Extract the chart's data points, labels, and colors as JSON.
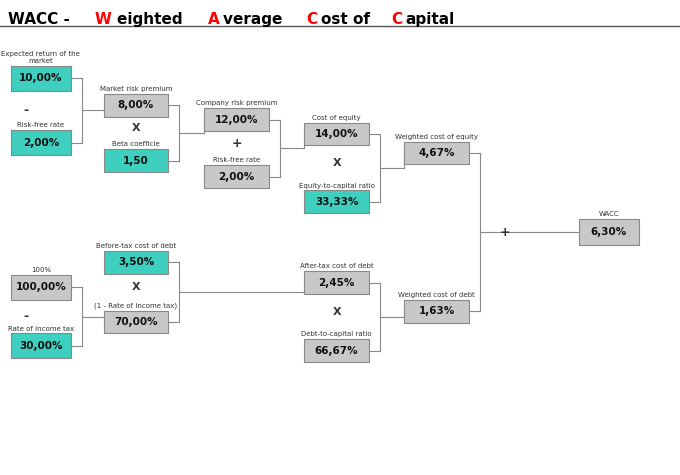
{
  "background_color": "#ffffff",
  "teal_color": "#3ecfbf",
  "gray_color": "#c8c8c8",
  "border_color": "#888888",
  "line_color": "#888888",
  "title_parts": [
    [
      "WACC - ",
      "#000000"
    ],
    [
      "W",
      "#ff0000"
    ],
    [
      "eighted ",
      "#000000"
    ],
    [
      "A",
      "#ff0000"
    ],
    [
      "verage ",
      "#000000"
    ],
    [
      "C",
      "#ff0000"
    ],
    [
      "ost of ",
      "#000000"
    ],
    [
      "C",
      "#ff0000"
    ],
    [
      "apital",
      "#000000"
    ]
  ],
  "boxes": {
    "exp_return": [
      0.06,
      0.835,
      0.088,
      0.052,
      "teal",
      "10,00%",
      "Expected return of the\nmarket"
    ],
    "risk_free1": [
      0.06,
      0.7,
      0.088,
      0.052,
      "teal",
      "2,00%",
      "Risk-free rate"
    ],
    "mkt_premium": [
      0.2,
      0.778,
      0.095,
      0.048,
      "gray",
      "8,00%",
      "Market risk premium"
    ],
    "beta": [
      0.2,
      0.662,
      0.095,
      0.048,
      "teal",
      "1,50",
      "Beta coefficie"
    ],
    "co_risk_prem": [
      0.348,
      0.748,
      0.095,
      0.048,
      "gray",
      "12,00%",
      "Company risk premium"
    ],
    "risk_free2": [
      0.348,
      0.628,
      0.095,
      0.048,
      "gray",
      "2,00%",
      "Risk-free rate"
    ],
    "cost_equity": [
      0.495,
      0.718,
      0.095,
      0.048,
      "gray",
      "14,00%",
      "Cost of equity"
    ],
    "eq_cap_ratio": [
      0.495,
      0.575,
      0.095,
      0.048,
      "teal",
      "33,33%",
      "Equity-to-capital ratio"
    ],
    "w_cost_eq": [
      0.642,
      0.678,
      0.095,
      0.048,
      "gray",
      "4,67%",
      "Weighted cost of equity"
    ],
    "btax_debt": [
      0.2,
      0.448,
      0.095,
      0.048,
      "teal",
      "3,50%",
      "Before-tax cost of debt"
    ],
    "pct100": [
      0.06,
      0.395,
      0.088,
      0.052,
      "gray",
      "100,00%",
      "100%"
    ],
    "tax_rate": [
      0.06,
      0.272,
      0.088,
      0.052,
      "teal",
      "30,00%",
      "Rate of income tax"
    ],
    "one_minus_t": [
      0.2,
      0.322,
      0.095,
      0.048,
      "gray",
      "70,00%",
      "(1 - Rate of income tax)"
    ],
    "atax_debt": [
      0.495,
      0.405,
      0.095,
      0.048,
      "gray",
      "2,45%",
      "After-tax cost of debt"
    ],
    "debt_cap": [
      0.495,
      0.262,
      0.095,
      0.048,
      "gray",
      "66,67%",
      "Debt-to-capital ratio"
    ],
    "w_cost_debt": [
      0.642,
      0.345,
      0.095,
      0.048,
      "gray",
      "1,63%",
      "Weighted cost of debt"
    ],
    "wacc": [
      0.895,
      0.512,
      0.088,
      0.055,
      "gray",
      "6,30%",
      "WACC"
    ]
  }
}
